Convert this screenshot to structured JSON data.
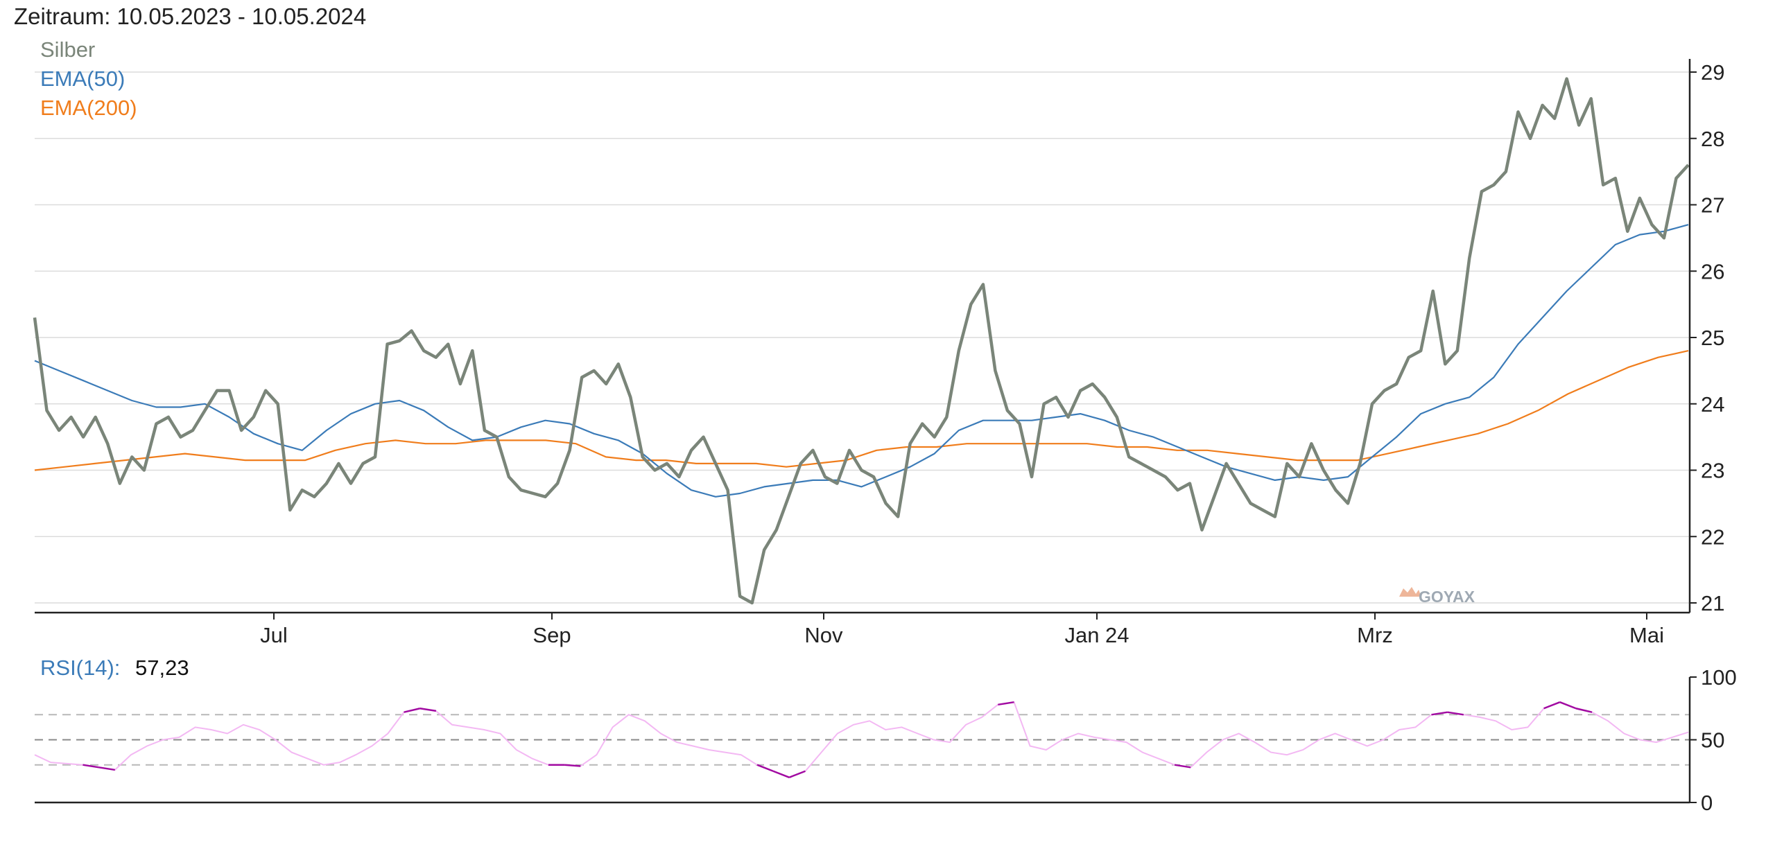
{
  "header": {
    "range_label": "Zeitraum: 10.05.2023 - 10.05.2024"
  },
  "watermark": "GOYAX",
  "chart_data": [
    {
      "type": "line",
      "ylim": [
        21,
        29
      ],
      "y_ticks": [
        "21",
        "22",
        "23",
        "24",
        "25",
        "26",
        "27",
        "28",
        "29"
      ],
      "x_ticks": [
        "Jul",
        "Sep",
        "Nov",
        "Jan 24",
        "Mrz",
        "Mai"
      ],
      "grid": true,
      "legend": "top-left",
      "series": [
        {
          "name": "Silber",
          "color": "#7a8579",
          "values": [
            25.3,
            23.9,
            23.6,
            23.8,
            23.5,
            23.8,
            23.4,
            22.8,
            23.2,
            23.0,
            23.7,
            23.8,
            23.5,
            23.6,
            23.9,
            24.2,
            24.2,
            23.6,
            23.8,
            24.2,
            24.0,
            22.4,
            22.7,
            22.6,
            22.8,
            23.1,
            22.8,
            23.1,
            23.2,
            24.9,
            24.95,
            25.1,
            24.8,
            24.7,
            24.9,
            24.3,
            24.8,
            23.6,
            23.5,
            22.9,
            22.7,
            22.65,
            22.6,
            22.8,
            23.3,
            24.4,
            24.5,
            24.3,
            24.6,
            24.1,
            23.2,
            23.0,
            23.1,
            22.9,
            23.3,
            23.5,
            23.1,
            22.7,
            21.1,
            21.0,
            21.8,
            22.1,
            22.6,
            23.1,
            23.3,
            22.9,
            22.8,
            23.3,
            23.0,
            22.9,
            22.5,
            22.3,
            23.4,
            23.7,
            23.5,
            23.8,
            24.8,
            25.5,
            25.8,
            24.5,
            23.9,
            23.7,
            22.9,
            24.0,
            24.1,
            23.8,
            24.2,
            24.3,
            24.1,
            23.8,
            23.2,
            23.1,
            23.0,
            22.9,
            22.7,
            22.8,
            22.1,
            22.6,
            23.1,
            22.8,
            22.5,
            22.4,
            22.3,
            23.1,
            22.9,
            23.4,
            23.0,
            22.7,
            22.5,
            23.1,
            24.0,
            24.2,
            24.3,
            24.7,
            24.8,
            25.7,
            24.6,
            24.8,
            26.2,
            27.2,
            27.3,
            27.5,
            28.4,
            28.0,
            28.5,
            28.3,
            28.9,
            28.2,
            28.6,
            27.3,
            27.4,
            26.6,
            27.1,
            26.7,
            26.5,
            27.4,
            27.6
          ]
        },
        {
          "name": "EMA(50)",
          "color": "#3b7bb8",
          "values": [
            24.65,
            24.5,
            24.35,
            24.2,
            24.05,
            23.95,
            23.95,
            24.0,
            23.8,
            23.55,
            23.4,
            23.3,
            23.6,
            23.85,
            24.0,
            24.05,
            23.9,
            23.65,
            23.45,
            23.5,
            23.65,
            23.75,
            23.7,
            23.55,
            23.45,
            23.25,
            22.95,
            22.7,
            22.6,
            22.65,
            22.75,
            22.8,
            22.85,
            22.85,
            22.75,
            22.9,
            23.05,
            23.25,
            23.6,
            23.75,
            23.75,
            23.75,
            23.8,
            23.85,
            23.75,
            23.6,
            23.5,
            23.35,
            23.2,
            23.05,
            22.95,
            22.85,
            22.9,
            22.85,
            22.9,
            23.2,
            23.5,
            23.85,
            24.0,
            24.1,
            24.4,
            24.9,
            25.3,
            25.7,
            26.05,
            26.4,
            26.55,
            26.6,
            26.7
          ]
        },
        {
          "name": "EMA(200)",
          "color": "#f07d1c",
          "values": [
            23.0,
            23.05,
            23.1,
            23.15,
            23.2,
            23.25,
            23.2,
            23.15,
            23.15,
            23.15,
            23.3,
            23.4,
            23.45,
            23.4,
            23.4,
            23.45,
            23.45,
            23.45,
            23.4,
            23.2,
            23.15,
            23.15,
            23.1,
            23.1,
            23.1,
            23.05,
            23.1,
            23.15,
            23.3,
            23.35,
            23.35,
            23.4,
            23.4,
            23.4,
            23.4,
            23.4,
            23.35,
            23.35,
            23.3,
            23.3,
            23.25,
            23.2,
            23.15,
            23.15,
            23.15,
            23.25,
            23.35,
            23.45,
            23.55,
            23.7,
            23.9,
            24.15,
            24.35,
            24.55,
            24.7,
            24.8
          ]
        }
      ]
    },
    {
      "type": "line",
      "title_label": "RSI(14):",
      "title_value": "57,23",
      "ylim": [
        0,
        100
      ],
      "y_ticks": [
        "0",
        "50",
        "100"
      ],
      "reference_lines": [
        30,
        50,
        70
      ],
      "series": [
        {
          "name": "RSI(14)",
          "color": "#f3b8f3",
          "highlight_color": "#a10aa1",
          "values": [
            38,
            32,
            31,
            30,
            28,
            26,
            38,
            45,
            50,
            52,
            60,
            58,
            55,
            62,
            58,
            50,
            40,
            35,
            30,
            32,
            38,
            45,
            55,
            72,
            75,
            73,
            62,
            60,
            58,
            55,
            42,
            35,
            30,
            30,
            29,
            38,
            60,
            70,
            65,
            55,
            48,
            45,
            42,
            40,
            38,
            30,
            25,
            20,
            25,
            40,
            55,
            62,
            65,
            58,
            60,
            55,
            50,
            48,
            62,
            68,
            78,
            80,
            45,
            42,
            50,
            55,
            52,
            50,
            48,
            40,
            35,
            30,
            28,
            40,
            50,
            55,
            48,
            40,
            38,
            42,
            50,
            55,
            50,
            45,
            50,
            58,
            60,
            70,
            72,
            70,
            68,
            65,
            58,
            60,
            75,
            80,
            75,
            72,
            65,
            55,
            50,
            48,
            52,
            56
          ]
        }
      ]
    }
  ]
}
